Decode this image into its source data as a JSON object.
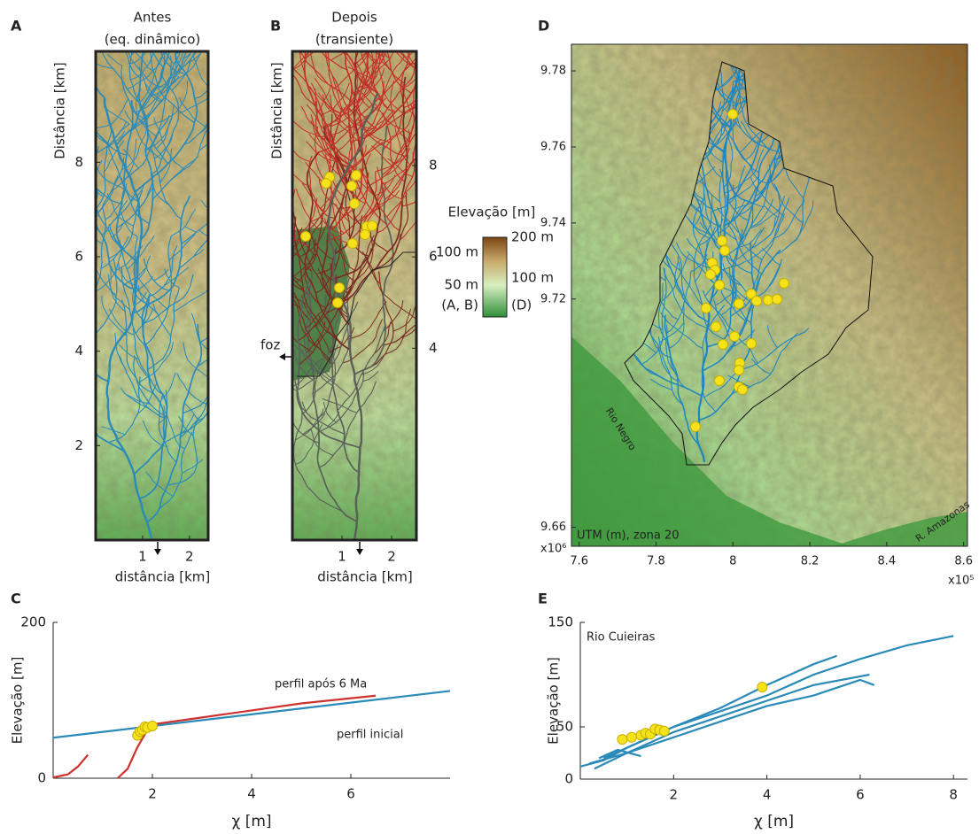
{
  "A": {
    "letter": "A",
    "title": "Antes",
    "subtitle": "(eq. dinâmico)",
    "ylabel": "Distância [km]",
    "xlabel": "distância [km]",
    "xlim": [
      0,
      2.4
    ],
    "ylim": [
      0,
      10.35
    ],
    "xticks": [
      1,
      2
    ],
    "yticks": [
      2,
      4,
      6,
      8
    ]
  },
  "B": {
    "letter": "B",
    "title": "Depois",
    "subtitle": "(transiente)",
    "ylabel": "Distância [km]",
    "xlabel": "distância [km]",
    "annotation": "foz",
    "xlim": [
      0,
      2.5
    ],
    "ylim": [
      -0.2,
      10.5
    ],
    "xticks": [
      1,
      2
    ],
    "yticks": [
      4,
      6,
      8
    ]
  },
  "colorbar": {
    "title": "Elevação [m]",
    "right_labels": [
      "200 m",
      "100 m",
      "(D)"
    ],
    "left_labels": [
      "100 m",
      "50 m",
      "(A, B)"
    ]
  },
  "D": {
    "letter": "D",
    "xlim": [
      7.58,
      8.61
    ],
    "ylim": [
      9.655,
      9.787
    ],
    "xticks": [
      7.6,
      7.8,
      8,
      8.2,
      8.4,
      8.6
    ],
    "yticks": [
      9.66,
      9.72,
      9.74,
      9.76,
      9.78
    ],
    "x_multiplier": "x10⁵",
    "y_multiplier": "x10⁶",
    "annotations": [
      "UTM (m), zona 20",
      "Rio Negro",
      "R. Amazonas"
    ]
  },
  "chart_data": [
    {
      "type": "line",
      "letter": "C",
      "ylabel": "Elevação [m]",
      "xlabel": "χ [m]",
      "xlim": [
        0,
        8
      ],
      "ylim": [
        0,
        200
      ],
      "xticks": [
        2,
        4,
        6
      ],
      "yticks": [
        0,
        200
      ],
      "series": [
        {
          "name": "perfil inicial",
          "color": "#2a8ab8",
          "x": [
            0,
            8
          ],
          "values": [
            52,
            112
          ]
        },
        {
          "name": "perfil após 6 Ma",
          "color": "#d0312d",
          "x": [
            0,
            0.3,
            0.5,
            0.7,
            1.0,
            1.3,
            1.5,
            1.7,
            1.9,
            2.1,
            3,
            4,
            5,
            6.5
          ],
          "values": [
            1,
            5,
            15,
            30,
            null,
            0,
            12,
            40,
            62,
            70,
            78,
            87,
            96,
            106
          ]
        }
      ],
      "points": {
        "color": "#f5e21b",
        "x": [
          1.7,
          1.75,
          1.8,
          1.85,
          1.9,
          2.0
        ],
        "values": [
          55,
          60,
          62,
          66,
          65,
          67
        ]
      }
    },
    {
      "type": "line",
      "letter": "E",
      "label": "Rio Cuieiras",
      "ylabel": "Elevação [m]",
      "xlabel": "χ [m]",
      "xlim": [
        0,
        8.3
      ],
      "ylim": [
        0,
        150
      ],
      "xticks": [
        2,
        4,
        6,
        8
      ],
      "yticks": [
        0,
        50,
        150
      ],
      "series": [
        {
          "color": "#2a8ab8",
          "x": [
            0,
            0.5,
            1,
            1.5,
            2,
            3,
            4,
            5,
            6,
            7,
            8
          ],
          "values": [
            12,
            18,
            30,
            40,
            50,
            65,
            80,
            100,
            115,
            128,
            137
          ]
        },
        {
          "color": "#2a8ab8",
          "x": [
            0.2,
            1,
            2,
            3,
            4,
            5,
            6.2
          ],
          "values": [
            15,
            25,
            45,
            60,
            75,
            90,
            100
          ]
        },
        {
          "color": "#2a8ab8",
          "x": [
            0.5,
            1,
            2,
            3,
            4,
            5,
            5.5
          ],
          "values": [
            20,
            30,
            50,
            68,
            90,
            110,
            118
          ]
        },
        {
          "color": "#2a8ab8",
          "x": [
            0.3,
            1,
            2,
            3,
            4,
            5,
            6,
            6.3
          ],
          "values": [
            10,
            25,
            40,
            55,
            70,
            80,
            95,
            90
          ]
        },
        {
          "color": "#2a8ab8",
          "x": [
            0.4,
            0.8,
            1.3
          ],
          "values": [
            20,
            28,
            22
          ]
        }
      ],
      "points": {
        "color": "#f5e21b",
        "x": [
          0.9,
          1.1,
          1.3,
          1.4,
          1.5,
          1.6,
          1.7,
          1.8,
          3.9
        ],
        "values": [
          38,
          40,
          42,
          44,
          43,
          48,
          47,
          46,
          88
        ]
      }
    }
  ]
}
